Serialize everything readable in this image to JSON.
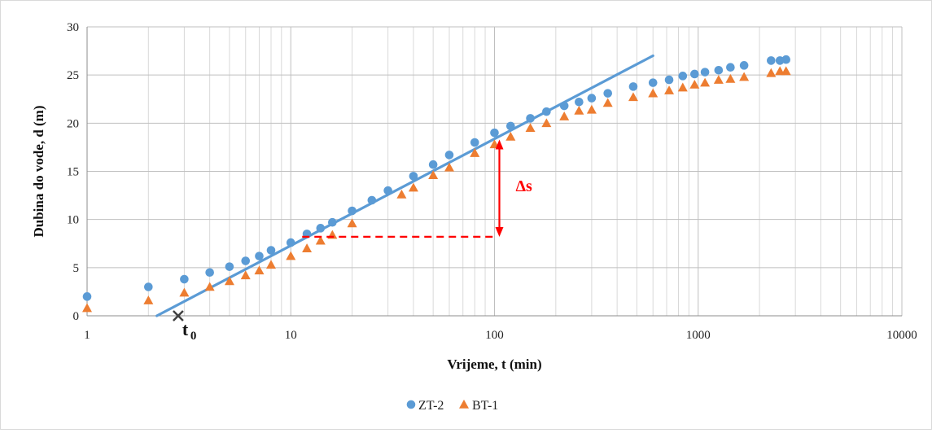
{
  "chart_data": {
    "type": "scatter",
    "xlabel": "Vrijeme, t (min)",
    "ylabel": "Dubina do vode, d (m)",
    "xscale": "log",
    "xlim": [
      1,
      10000
    ],
    "ylim": [
      0,
      30
    ],
    "x_ticks": [
      1,
      10,
      100,
      1000,
      10000
    ],
    "x_tick_labels": [
      "1",
      "10",
      "100",
      "1000",
      "10000"
    ],
    "y_ticks": [
      0,
      5,
      10,
      15,
      20,
      25,
      30
    ],
    "grid": true,
    "legend": "bottom",
    "series": [
      {
        "name": "ZT-2",
        "marker": "circle",
        "color": "#5b9bd5",
        "points": [
          [
            1,
            2.0
          ],
          [
            2,
            3.0
          ],
          [
            3,
            3.8
          ],
          [
            4,
            4.5
          ],
          [
            5,
            5.1
          ],
          [
            6,
            5.7
          ],
          [
            7,
            6.2
          ],
          [
            8,
            6.8
          ],
          [
            10,
            7.6
          ],
          [
            12,
            8.5
          ],
          [
            14,
            9.1
          ],
          [
            16,
            9.7
          ],
          [
            20,
            10.9
          ],
          [
            25,
            12.0
          ],
          [
            30,
            13.0
          ],
          [
            40,
            14.5
          ],
          [
            50,
            15.7
          ],
          [
            60,
            16.7
          ],
          [
            80,
            18.0
          ],
          [
            100,
            19.0
          ],
          [
            120,
            19.7
          ],
          [
            150,
            20.5
          ],
          [
            180,
            21.2
          ],
          [
            220,
            21.8
          ],
          [
            260,
            22.2
          ],
          [
            300,
            22.6
          ],
          [
            360,
            23.1
          ],
          [
            480,
            23.8
          ],
          [
            600,
            24.2
          ],
          [
            720,
            24.5
          ],
          [
            840,
            24.9
          ],
          [
            960,
            25.1
          ],
          [
            1080,
            25.3
          ],
          [
            1260,
            25.5
          ],
          [
            1440,
            25.8
          ],
          [
            1680,
            26.0
          ],
          [
            2280,
            26.5
          ],
          [
            2520,
            26.5
          ],
          [
            2700,
            26.6
          ]
        ]
      },
      {
        "name": "BT-1",
        "marker": "triangle",
        "color": "#ed7d31",
        "points": [
          [
            1,
            0.8
          ],
          [
            2,
            1.6
          ],
          [
            3,
            2.4
          ],
          [
            4,
            3.0
          ],
          [
            5,
            3.6
          ],
          [
            6,
            4.2
          ],
          [
            7,
            4.7
          ],
          [
            8,
            5.3
          ],
          [
            10,
            6.2
          ],
          [
            12,
            7.0
          ],
          [
            14,
            7.8
          ],
          [
            16,
            8.4
          ],
          [
            20,
            9.6
          ],
          [
            35,
            12.6
          ],
          [
            40,
            13.3
          ],
          [
            50,
            14.6
          ],
          [
            60,
            15.4
          ],
          [
            80,
            16.9
          ],
          [
            100,
            17.8
          ],
          [
            120,
            18.6
          ],
          [
            150,
            19.5
          ],
          [
            180,
            20.0
          ],
          [
            220,
            20.7
          ],
          [
            260,
            21.3
          ],
          [
            300,
            21.4
          ],
          [
            360,
            22.1
          ],
          [
            480,
            22.7
          ],
          [
            600,
            23.1
          ],
          [
            720,
            23.4
          ],
          [
            840,
            23.7
          ],
          [
            960,
            24.0
          ],
          [
            1080,
            24.2
          ],
          [
            1260,
            24.5
          ],
          [
            1440,
            24.6
          ],
          [
            1680,
            24.8
          ],
          [
            2280,
            25.2
          ],
          [
            2520,
            25.4
          ],
          [
            2700,
            25.4
          ]
        ]
      }
    ],
    "fit_line": {
      "color": "#5b9bd5",
      "from": [
        2.2,
        0
      ],
      "to": [
        600,
        27.0
      ]
    },
    "annotations": {
      "t0": {
        "x": 2.8,
        "y": 0,
        "label_main": "t",
        "label_sub": "0",
        "color": "#404040"
      },
      "delta_s": {
        "label": "Δs",
        "color": "#ff0000",
        "x": 100,
        "y_from": 8.2,
        "y_to": 18.3,
        "dash_x_from": 10,
        "dash_x_to": 100,
        "dash_y": 8.2
      }
    }
  }
}
